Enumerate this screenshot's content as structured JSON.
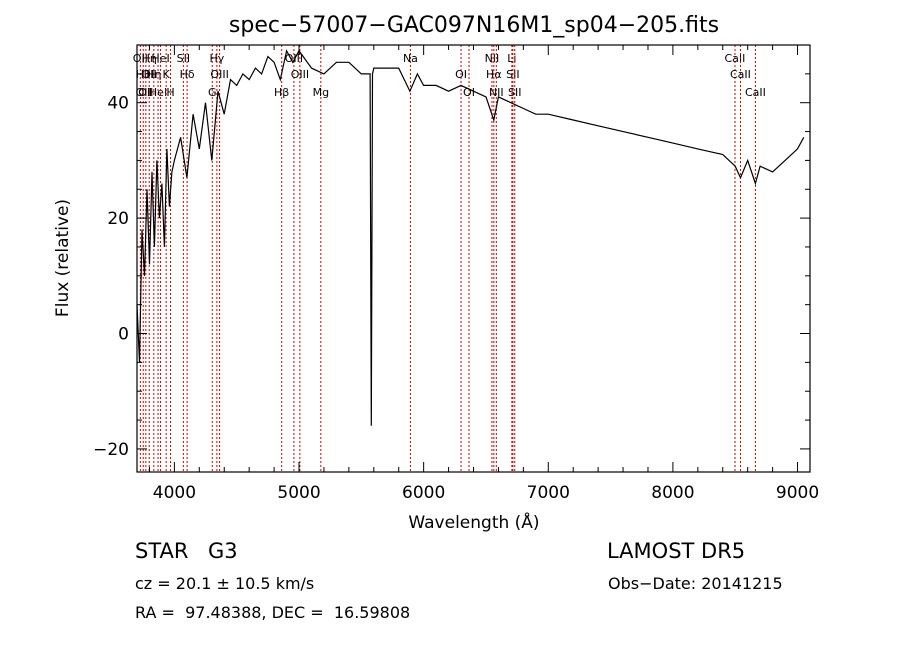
{
  "chart_data": {
    "type": "line",
    "title": "spec−57007−GAC097N16M1_sp04−205.fits",
    "xlabel": "Wavelength (Å)",
    "ylabel": "Flux (relative)",
    "xlim": [
      3700,
      9100
    ],
    "ylim": [
      -24,
      50
    ],
    "xticks": [
      4000,
      5000,
      6000,
      7000,
      8000,
      9000
    ],
    "yticks": [
      -20,
      0,
      20,
      40
    ],
    "grid": false,
    "series": [
      {
        "color": "#000000",
        "x": [
          3700,
          3720,
          3740,
          3760,
          3780,
          3800,
          3820,
          3840,
          3860,
          3880,
          3900,
          3920,
          3940,
          3960,
          3980,
          4000,
          4050,
          4100,
          4150,
          4200,
          4250,
          4300,
          4350,
          4400,
          4450,
          4500,
          4550,
          4600,
          4650,
          4700,
          4750,
          4800,
          4850,
          4900,
          4950,
          5000,
          5100,
          5200,
          5300,
          5400,
          5500,
          5570,
          5580,
          5590,
          5600,
          5700,
          5800,
          5890,
          5950,
          6000,
          6100,
          6200,
          6300,
          6400,
          6500,
          6563,
          6600,
          6700,
          6800,
          6900,
          7000,
          7200,
          7400,
          7600,
          7800,
          8000,
          8200,
          8400,
          8500,
          8542,
          8600,
          8662,
          8700,
          8800,
          8900,
          9000,
          9050
        ],
        "y": [
          5,
          -5,
          18,
          10,
          25,
          12,
          28,
          15,
          30,
          20,
          26,
          15,
          32,
          22,
          28,
          30,
          34,
          27,
          38,
          32,
          40,
          30,
          42,
          38,
          44,
          43,
          45,
          44,
          46,
          45,
          48,
          47,
          44,
          49,
          47,
          49,
          46,
          45,
          47,
          47,
          45,
          45,
          -16,
          45,
          46,
          46,
          46,
          42,
          45,
          43,
          43,
          42,
          43,
          42,
          41,
          37,
          41,
          40,
          39,
          38,
          38,
          37,
          36,
          35,
          34,
          33,
          32,
          31,
          29,
          27,
          30,
          26,
          29,
          28,
          30,
          32,
          34
        ]
      }
    ],
    "lines": [
      {
        "x": 3727,
        "labels": [
          "OII"
        ]
      },
      {
        "x": 3750,
        "labels": [
          "Hθ",
          "OII"
        ]
      },
      {
        "x": 3771,
        "labels": [
          "OII"
        ]
      },
      {
        "x": 3798,
        "labels": [
          "Hη",
          "OII"
        ]
      },
      {
        "x": 3835,
        "labels": [
          "Hη"
        ]
      },
      {
        "x": 3869,
        "labels": [
          "HeI"
        ]
      },
      {
        "x": 3889,
        "labels": [
          "HeI"
        ]
      },
      {
        "x": 3934,
        "labels": [
          "K"
        ]
      },
      {
        "x": 3969,
        "labels": [
          "H"
        ]
      },
      {
        "x": 4072,
        "labels": [
          "SII"
        ]
      },
      {
        "x": 4102,
        "labels": [
          "Hδ"
        ]
      },
      {
        "x": 4304,
        "labels": [
          "G"
        ]
      },
      {
        "x": 4341,
        "labels": [
          "Hγ"
        ]
      },
      {
        "x": 4363,
        "labels": [
          "OIII"
        ]
      },
      {
        "x": 4861,
        "labels": [
          "Hβ"
        ]
      },
      {
        "x": 4959,
        "labels": [
          "OIII"
        ]
      },
      {
        "x": 5007,
        "labels": [
          "OIII"
        ]
      },
      {
        "x": 5175,
        "labels": [
          "Mg"
        ]
      },
      {
        "x": 5894,
        "labels": [
          "Na"
        ]
      },
      {
        "x": 6300,
        "labels": [
          "OI"
        ]
      },
      {
        "x": 6364,
        "labels": [
          "OI"
        ]
      },
      {
        "x": 6548,
        "labels": [
          "NII"
        ]
      },
      {
        "x": 6563,
        "labels": [
          "Hα"
        ]
      },
      {
        "x": 6583,
        "labels": [
          "NII"
        ]
      },
      {
        "x": 6708,
        "labels": [
          "Li"
        ]
      },
      {
        "x": 6716,
        "labels": [
          "SII"
        ]
      },
      {
        "x": 6731,
        "labels": [
          "SII"
        ]
      },
      {
        "x": 8498,
        "labels": [
          "CaII"
        ]
      },
      {
        "x": 8542,
        "labels": [
          "CaII"
        ]
      },
      {
        "x": 8662,
        "labels": [
          "CaII"
        ]
      }
    ]
  },
  "info": {
    "class_label": "STAR",
    "subclass": "G3",
    "survey": "LAMOST DR5",
    "redshift": "cz = 20.1 ± 10.5 km/s",
    "obs_date": "Obs−Date: 20141215",
    "coords": "RA =  97.48388, DEC =  16.59808"
  }
}
